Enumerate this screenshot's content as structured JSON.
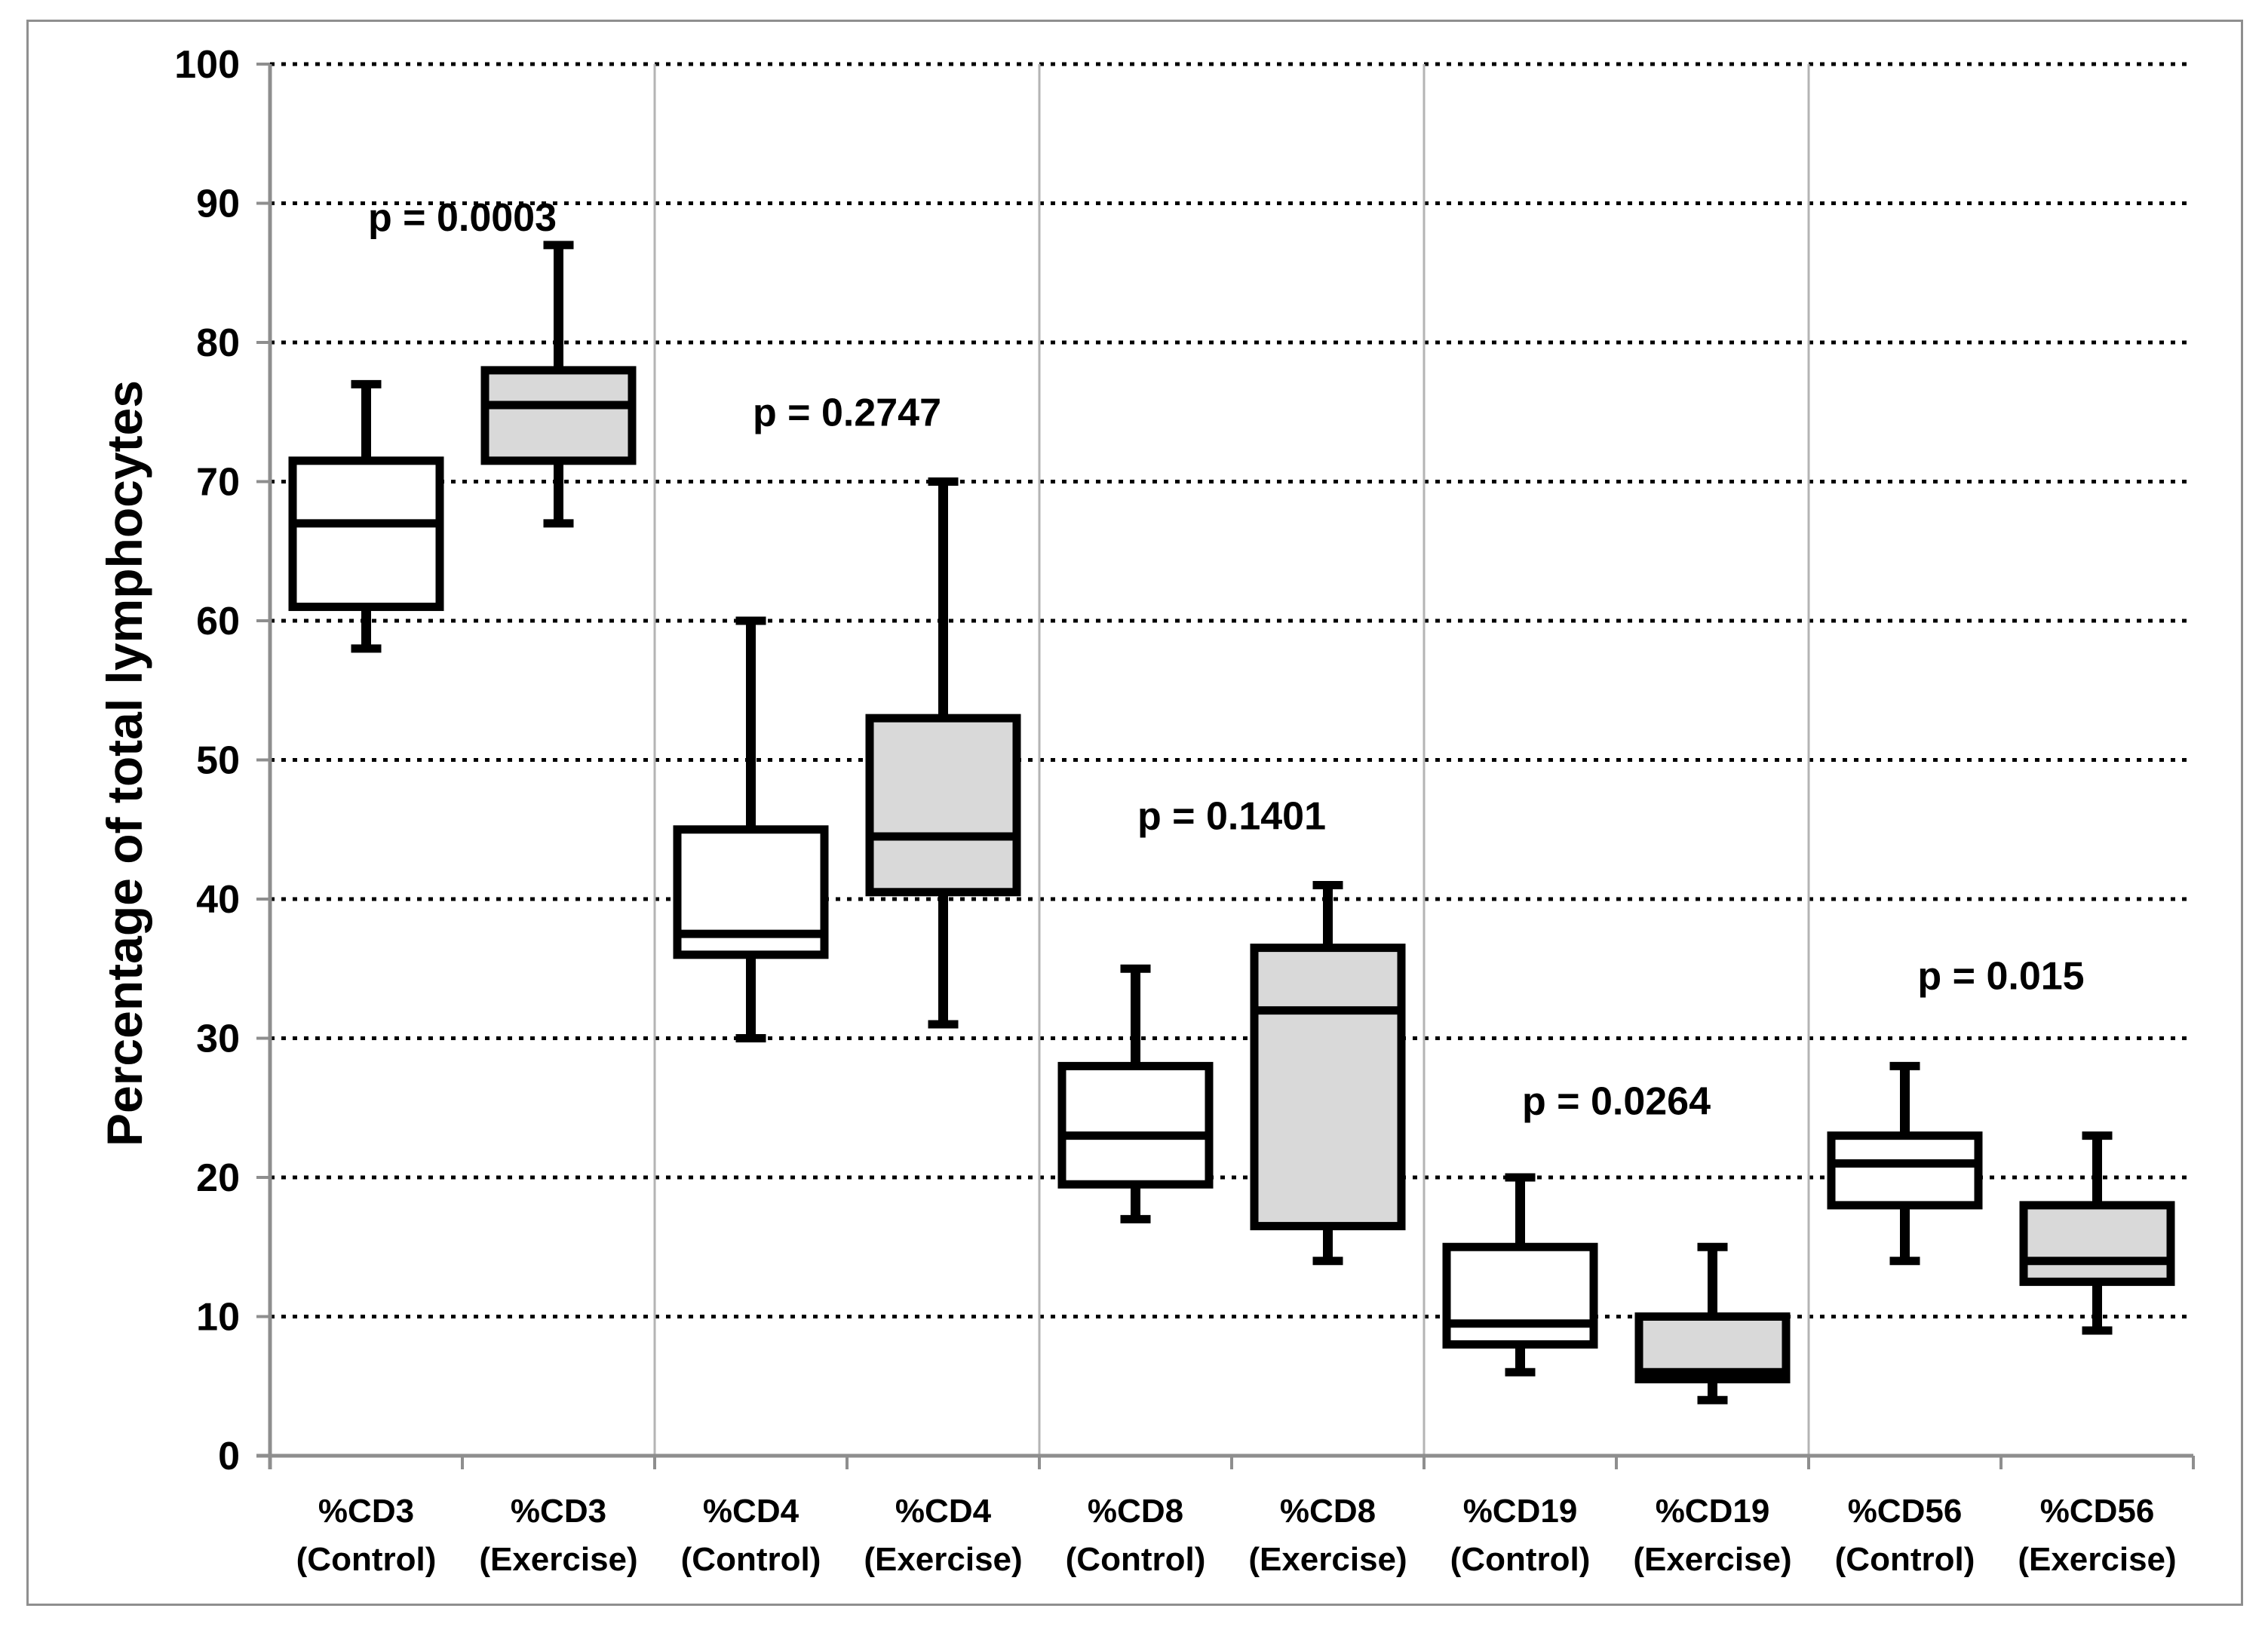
{
  "chart_data": {
    "type": "boxplot",
    "title": "",
    "ylabel": "Percentage of total lymphocytes",
    "xlabel": "",
    "ylim": [
      0,
      100
    ],
    "y_ticks": [
      0,
      10,
      20,
      30,
      40,
      50,
      60,
      70,
      80,
      90,
      100
    ],
    "grid": "horizontal-dotted",
    "legend_position": "none",
    "categories": [
      "%CD3 (Control)",
      "%CD3 (Exercise)",
      "%CD4 (Control)",
      "%CD4 (Exercise)",
      "%CD8 (Control)",
      "%CD8 (Exercise)",
      "%CD19 (Control)",
      "%CD19 (Exercise)",
      "%CD56 (Control)",
      "%CD56 (Exercise)"
    ],
    "category_labels": [
      [
        "%CD3",
        "(Control)"
      ],
      [
        "%CD3",
        "(Exercise)"
      ],
      [
        "%CD4",
        "(Control)"
      ],
      [
        "%CD4",
        "(Exercise)"
      ],
      [
        "%CD8",
        "(Control)"
      ],
      [
        "%CD8",
        "(Exercise)"
      ],
      [
        "%CD19",
        "(Control)"
      ],
      [
        "%CD19",
        "(Exercise)"
      ],
      [
        "%CD56",
        "(Control)"
      ],
      [
        "%CD56",
        "(Exercise)"
      ]
    ],
    "series": [
      {
        "name": "%CD3 (Control)",
        "group": "%CD3",
        "condition": "Control",
        "min": 58,
        "q1": 61,
        "median": 67,
        "q3": 71.5,
        "max": 77
      },
      {
        "name": "%CD3 (Exercise)",
        "group": "%CD3",
        "condition": "Exercise",
        "min": 67,
        "q1": 71.5,
        "median": 75.5,
        "q3": 78,
        "max": 87
      },
      {
        "name": "%CD4 (Control)",
        "group": "%CD4",
        "condition": "Control",
        "min": 30,
        "q1": 36,
        "median": 37.5,
        "q3": 45,
        "max": 60
      },
      {
        "name": "%CD4 (Exercise)",
        "group": "%CD4",
        "condition": "Exercise",
        "min": 31,
        "q1": 40.5,
        "median": 44.5,
        "q3": 53,
        "max": 70
      },
      {
        "name": "%CD8 (Control)",
        "group": "%CD8",
        "condition": "Control",
        "min": 17,
        "q1": 19.5,
        "median": 23,
        "q3": 28,
        "max": 35
      },
      {
        "name": "%CD8 (Exercise)",
        "group": "%CD8",
        "condition": "Exercise",
        "min": 14,
        "q1": 16.5,
        "median": 32,
        "q3": 36.5,
        "max": 41
      },
      {
        "name": "%CD19 (Control)",
        "group": "%CD19",
        "condition": "Control",
        "min": 6,
        "q1": 8,
        "median": 9.5,
        "q3": 15,
        "max": 20
      },
      {
        "name": "%CD19 (Exercise)",
        "group": "%CD19",
        "condition": "Exercise",
        "min": 4,
        "q1": 5.5,
        "median": 6,
        "q3": 10,
        "max": 15
      },
      {
        "name": "%CD56 (Control)",
        "group": "%CD56",
        "condition": "Control",
        "min": 14,
        "q1": 18,
        "median": 21,
        "q3": 23,
        "max": 28
      },
      {
        "name": "%CD56 (Exercise)",
        "group": "%CD56",
        "condition": "Exercise",
        "min": 9,
        "q1": 12.5,
        "median": 14,
        "q3": 18,
        "max": 23
      }
    ],
    "annotations": [
      {
        "text": "p = 0.0003",
        "group": "%CD3",
        "group_index": 0,
        "y_value": 89
      },
      {
        "text": "p = 0.2747",
        "group": "%CD4",
        "group_index": 1,
        "y_value": 75
      },
      {
        "text": "p = 0.1401",
        "group": "%CD8",
        "group_index": 2,
        "y_value": 46
      },
      {
        "text": "p = 0.0264",
        "group": "%CD19",
        "group_index": 3,
        "y_value": 25.5
      },
      {
        "text": "p = 0.015",
        "group": "%CD56",
        "group_index": 4,
        "y_value": 34.5
      }
    ],
    "colors": {
      "control_fill": "#ffffff",
      "exercise_fill": "#d9d9d9",
      "box_line": "#000000",
      "median_line": "#000000",
      "gridline": "#000000",
      "separator_line": "#b4b4b4",
      "axis_line": "#8e8e8e",
      "text": "#000000",
      "background": "#ffffff",
      "figure_border": "#8f8f8f"
    }
  }
}
